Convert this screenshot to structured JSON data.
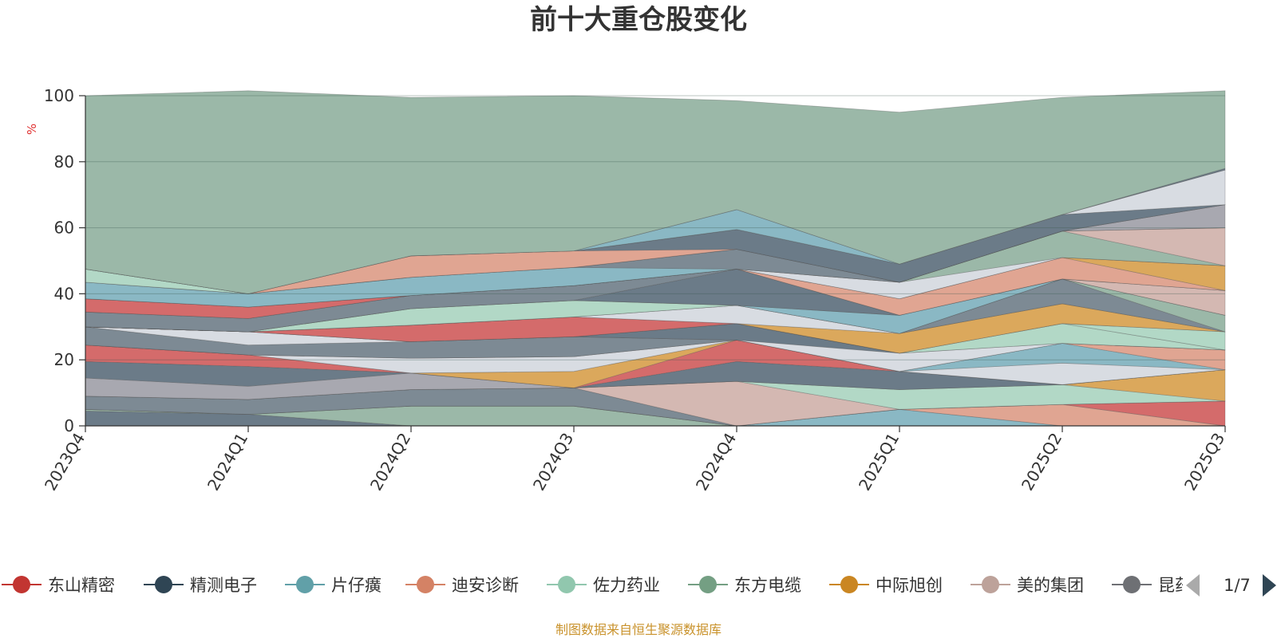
{
  "chart_data": {
    "type": "area",
    "stacked": true,
    "title": "前十大重仓股变化",
    "ylabel": "%",
    "categories": [
      "2023Q4",
      "2024Q1",
      "2024Q2",
      "2024Q3",
      "2024Q4",
      "2025Q1",
      "2025Q2",
      "2025Q3"
    ],
    "ylim": [
      0,
      100
    ],
    "yticks": [
      0,
      20,
      40,
      60,
      80,
      100
    ],
    "grid": true,
    "series": [
      {
        "name": "",
        "color": "#6b7b88",
        "values": [
          4.5,
          3.5,
          0,
          0,
          0,
          0,
          0,
          0
        ]
      },
      {
        "name": "",
        "color": "#9bb8a8",
        "values": [
          0.5,
          0,
          6,
          6,
          0,
          0,
          0,
          0
        ]
      },
      {
        "name": "",
        "color": "#8ab8c4",
        "values": [
          0,
          0,
          0,
          0,
          0,
          5,
          0,
          0
        ]
      },
      {
        "name": "",
        "color": "#e0a592",
        "values": [
          0,
          0,
          0,
          0,
          0,
          0,
          6.5,
          0
        ]
      },
      {
        "name": "",
        "color": "#d46b6b",
        "values": [
          0,
          0,
          0,
          0,
          0,
          0,
          0,
          7.5
        ]
      },
      {
        "name": "",
        "color": "#7d8a94",
        "values": [
          4,
          4.5,
          5,
          5.5,
          0,
          0,
          0,
          0
        ]
      },
      {
        "name": "",
        "color": "#d4b8b2",
        "values": [
          0,
          0,
          0,
          0,
          13.5,
          0,
          0,
          0
        ]
      },
      {
        "name": "",
        "color": "#b2d8c6",
        "values": [
          0,
          0,
          0,
          0,
          0,
          6,
          6,
          0
        ]
      },
      {
        "name": "",
        "color": "#dba85c",
        "values": [
          0,
          0,
          0,
          0,
          0,
          0,
          0,
          9.5
        ]
      },
      {
        "name": "",
        "color": "#a8a8b0",
        "values": [
          5.5,
          4,
          5,
          0,
          0,
          0,
          0,
          0
        ]
      },
      {
        "name": "",
        "color": "#6b7b88",
        "values": [
          5,
          6,
          0,
          0,
          6,
          5.5,
          0,
          0
        ]
      },
      {
        "name": "",
        "color": "#d46b6b",
        "values": [
          5,
          3.5,
          0,
          0,
          6.5,
          0,
          0,
          0
        ]
      },
      {
        "name": "",
        "color": "#dba85c",
        "values": [
          0,
          0,
          0,
          5,
          0,
          0,
          0,
          0
        ]
      },
      {
        "name": "",
        "color": "#d8dce2",
        "values": [
          0,
          0,
          4.5,
          4.5,
          0,
          0,
          6.5,
          0
        ]
      },
      {
        "name": "",
        "color": "#8ab8c4",
        "values": [
          0,
          0,
          0,
          0,
          0,
          0,
          6,
          0
        ]
      },
      {
        "name": "",
        "color": "#e0a592",
        "values": [
          0,
          0,
          0,
          0,
          0,
          0,
          0,
          6
        ]
      },
      {
        "name": "",
        "color": "#7d8a94",
        "values": [
          5.5,
          3,
          5,
          6,
          0,
          0,
          0,
          0
        ]
      },
      {
        "name": "",
        "color": "#d8dce2",
        "values": [
          0,
          4,
          0,
          0,
          0,
          5.5,
          0,
          0
        ]
      },
      {
        "name": "",
        "color": "#6b7b88",
        "values": [
          0,
          0,
          0,
          0,
          5,
          0,
          0,
          0
        ]
      },
      {
        "name": "",
        "color": "#b2d8c6",
        "values": [
          0,
          0,
          0,
          0,
          0,
          0,
          6,
          0
        ]
      },
      {
        "name": "",
        "color": "#b2d8c6",
        "values": [
          0,
          0,
          0,
          0,
          0,
          0,
          0,
          5.5
        ]
      },
      {
        "name": "",
        "color": "#d46b6b",
        "values": [
          0,
          0,
          5,
          6,
          0,
          0,
          0,
          0
        ]
      },
      {
        "name": "",
        "color": "#dba85c",
        "values": [
          0,
          0,
          0,
          0,
          0,
          6,
          6,
          0
        ]
      },
      {
        "name": "",
        "color": "#d8dce2",
        "values": [
          0,
          0,
          0,
          0,
          5.5,
          0,
          0,
          0
        ]
      },
      {
        "name": "",
        "color": "#7d8a94",
        "values": [
          0,
          0,
          0,
          0,
          0,
          0,
          7.5,
          0
        ]
      },
      {
        "name": "",
        "color": "#9bb8a8",
        "values": [
          0,
          0,
          0,
          0,
          0,
          0,
          0,
          5
        ]
      },
      {
        "name": "",
        "color": "#b2d8c6",
        "values": [
          0,
          0,
          5,
          5,
          0,
          0,
          0,
          0
        ]
      },
      {
        "name": "",
        "color": "#8ab8c4",
        "values": [
          0,
          0,
          0,
          0,
          0,
          5.5,
          0,
          0
        ]
      },
      {
        "name": "",
        "color": "#d4b8b2",
        "values": [
          0,
          0,
          0,
          0,
          0,
          0,
          0,
          7.5
        ]
      },
      {
        "name": "",
        "color": "#6b7b88",
        "values": [
          0,
          0,
          0,
          0,
          11,
          0,
          0,
          0
        ]
      },
      {
        "name": "",
        "color": "#7d8a94",
        "values": [
          4.5,
          4,
          4,
          4.5,
          0,
          0,
          0,
          0
        ]
      },
      {
        "name": "",
        "color": "#e0a592",
        "values": [
          0,
          0,
          0,
          0,
          0,
          5,
          6.5,
          0
        ]
      },
      {
        "name": "",
        "color": "#dba85c",
        "values": [
          0,
          0,
          0,
          0,
          0,
          0,
          0,
          7.5
        ]
      },
      {
        "name": "",
        "color": "#d46b6b",
        "values": [
          4,
          3.5,
          0,
          0,
          0,
          0,
          0,
          0
        ]
      },
      {
        "name": "",
        "color": "#d8dce2",
        "values": [
          0,
          0,
          0,
          0,
          0,
          5,
          0,
          0
        ]
      },
      {
        "name": "",
        "color": "#9bb8a8",
        "values": [
          0,
          0,
          0,
          0,
          0,
          0,
          8,
          0
        ]
      },
      {
        "name": "",
        "color": "#d4b8b2",
        "values": [
          0,
          0,
          0,
          0,
          0,
          0,
          0,
          11.5
        ]
      },
      {
        "name": "",
        "color": "#8ab8c4",
        "values": [
          5,
          4,
          5.5,
          5.5,
          0,
          0,
          0,
          0
        ]
      },
      {
        "name": "",
        "color": "#7d8a94",
        "values": [
          0,
          0,
          0,
          0,
          6,
          0,
          0,
          0
        ]
      },
      {
        "name": "",
        "color": "#a8a8b0",
        "values": [
          0,
          0,
          0,
          0,
          0,
          0,
          0,
          7
        ]
      },
      {
        "name": "",
        "color": "#b2d8c6",
        "values": [
          4,
          0,
          0,
          0,
          0,
          0,
          0,
          0
        ]
      },
      {
        "name": "",
        "color": "#e0a592",
        "values": [
          0,
          0,
          6.5,
          5,
          0,
          0,
          0,
          0
        ]
      },
      {
        "name": "",
        "color": "#6b7b88",
        "values": [
          0,
          0,
          0,
          0,
          6,
          5.5,
          5,
          0
        ]
      },
      {
        "name": "",
        "color": "#d8dce2",
        "values": [
          0,
          0,
          0,
          0,
          0,
          0,
          0,
          10.5
        ]
      },
      {
        "name": "",
        "color": "#8ab8c4",
        "values": [
          0,
          0,
          0,
          0,
          6,
          0,
          0,
          0
        ]
      },
      {
        "name": "",
        "color": "#6b7b88",
        "values": [
          0,
          0,
          0,
          0,
          0,
          0,
          0,
          0.5
        ]
      },
      {
        "name": "",
        "color": "#9bb8a8",
        "values": [
          52.5,
          61.5,
          48,
          47,
          33,
          46,
          35.5,
          23.5
        ]
      }
    ]
  },
  "legend": {
    "items": [
      {
        "name": "东山精密",
        "color": "#c23531"
      },
      {
        "name": "精测电子",
        "color": "#2f4554"
      },
      {
        "name": "片仔癀",
        "color": "#61a0a8"
      },
      {
        "name": "迪安诊断",
        "color": "#d48265"
      },
      {
        "name": "佐力药业",
        "color": "#91c7ae"
      },
      {
        "name": "东方电缆",
        "color": "#749f83"
      },
      {
        "name": "中际旭创",
        "color": "#ca8622"
      },
      {
        "name": "美的集团",
        "color": "#bda29a"
      },
      {
        "name": "昆药集团",
        "color": "#6e7074"
      }
    ],
    "page": "1/7"
  },
  "source_note": "制图数据来自恒生聚源数据库"
}
